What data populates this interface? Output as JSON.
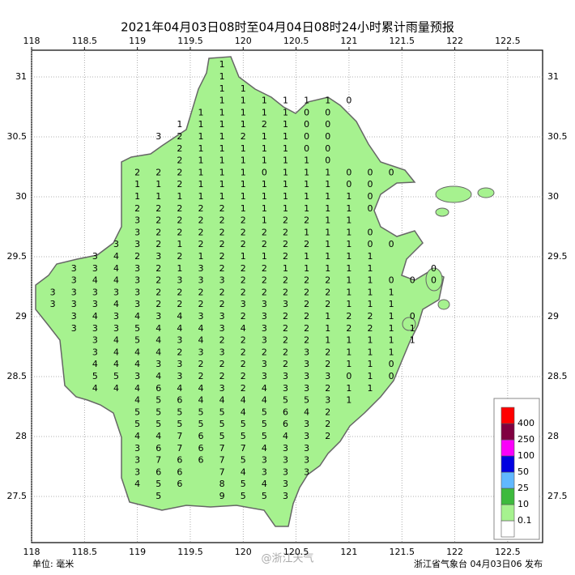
{
  "map": {
    "title": "2021年04月03日08时至04月04日08时24小时累计雨量预报",
    "unit": "单位: 毫米",
    "issuer": "浙江省气象台 04月03日06 发布",
    "watermark": "@浙江天气",
    "xlim": [
      118,
      122.83
    ],
    "ylim": [
      27.115,
      31.223
    ],
    "xticks": [
      118,
      118.5,
      119,
      119.5,
      120,
      120.5,
      121,
      121.5,
      122,
      122.5
    ],
    "yticks": [
      27.5,
      28,
      28.5,
      29,
      29.5,
      30,
      30.5,
      31
    ],
    "grid": true,
    "legend": {
      "colors": [
        "#ffffff",
        "#a6f28f",
        "#3dba3d",
        "#61b8ff",
        "#0000e1",
        "#fa00fa",
        "#800040",
        "#ff0000"
      ],
      "labels": [
        0.1,
        10,
        25,
        50,
        100,
        250,
        400
      ]
    },
    "lons": [
      118.2,
      118.4,
      118.6,
      118.8,
      119.0,
      119.2,
      119.4,
      119.6,
      119.8,
      120.0,
      120.2,
      120.4,
      120.6,
      120.8,
      121.0,
      121.2,
      121.4,
      121.6,
      121.8,
      122.0,
      122.2
    ],
    "lats": [
      31.1,
      31.0,
      30.9,
      30.8,
      30.7,
      30.6,
      30.5,
      30.4,
      30.3,
      30.2,
      30.1,
      30.0,
      29.9,
      29.8,
      29.7,
      29.6,
      29.5,
      29.4,
      29.3,
      29.2,
      29.1,
      29.0,
      28.9,
      28.8,
      28.7,
      28.6,
      28.5,
      28.4,
      28.3,
      28.2,
      28.1,
      28.0,
      27.9,
      27.8,
      27.7,
      27.6,
      27.5
    ],
    "rows": [
      [
        null,
        null,
        null,
        null,
        null,
        null,
        null,
        null,
        1,
        null,
        null,
        null,
        null,
        null,
        null,
        null,
        null,
        null,
        null,
        null,
        null
      ],
      [
        null,
        null,
        null,
        null,
        null,
        null,
        null,
        null,
        1,
        null,
        null,
        null,
        null,
        null,
        null,
        null,
        null,
        null,
        null,
        null,
        null
      ],
      [
        null,
        null,
        null,
        null,
        null,
        null,
        null,
        null,
        1,
        1,
        null,
        null,
        null,
        null,
        null,
        null,
        null,
        null,
        null,
        null,
        null
      ],
      [
        null,
        null,
        null,
        null,
        null,
        null,
        null,
        null,
        1,
        1,
        1,
        1,
        1,
        1,
        0,
        null,
        null,
        null,
        null,
        null,
        null
      ],
      [
        null,
        null,
        null,
        null,
        null,
        null,
        null,
        1,
        1,
        1,
        1,
        1,
        0,
        0,
        null,
        null,
        null,
        null,
        null,
        null,
        null
      ],
      [
        null,
        null,
        null,
        null,
        null,
        null,
        1,
        1,
        1,
        1,
        2,
        1,
        0,
        0,
        null,
        null,
        null,
        null,
        null,
        null,
        null
      ],
      [
        null,
        null,
        null,
        null,
        null,
        3,
        2,
        1,
        1,
        2,
        1,
        1,
        0,
        0,
        null,
        null,
        null,
        null,
        null,
        null,
        null
      ],
      [
        null,
        null,
        null,
        null,
        null,
        null,
        2,
        1,
        1,
        1,
        1,
        1,
        0,
        0,
        null,
        null,
        null,
        null,
        null,
        null,
        null
      ],
      [
        null,
        null,
        null,
        null,
        null,
        null,
        2,
        1,
        1,
        1,
        1,
        1,
        1,
        0,
        null,
        null,
        null,
        null,
        null,
        null,
        null
      ],
      [
        null,
        null,
        null,
        null,
        2,
        2,
        2,
        1,
        1,
        1,
        0,
        1,
        1,
        1,
        0,
        0,
        0,
        null,
        null,
        null,
        null
      ],
      [
        null,
        null,
        null,
        null,
        1,
        1,
        2,
        1,
        1,
        1,
        1,
        1,
        1,
        1,
        0,
        0,
        null,
        null,
        null,
        null,
        null
      ],
      [
        null,
        null,
        null,
        null,
        1,
        1,
        1,
        1,
        1,
        1,
        1,
        1,
        1,
        1,
        1,
        0,
        null,
        null,
        null,
        null,
        null
      ],
      [
        null,
        null,
        null,
        null,
        2,
        2,
        2,
        2,
        2,
        1,
        1,
        1,
        1,
        1,
        1,
        0,
        null,
        null,
        null,
        null,
        null
      ],
      [
        null,
        null,
        null,
        null,
        3,
        2,
        2,
        2,
        2,
        2,
        1,
        2,
        2,
        1,
        1,
        null,
        null,
        null,
        null,
        null,
        null
      ],
      [
        null,
        null,
        null,
        null,
        3,
        2,
        2,
        2,
        2,
        2,
        2,
        2,
        1,
        1,
        1,
        0,
        null,
        null,
        null,
        null,
        null
      ],
      [
        null,
        null,
        null,
        3,
        3,
        2,
        1,
        2,
        2,
        2,
        2,
        2,
        2,
        1,
        1,
        0,
        0,
        null,
        null,
        null,
        null
      ],
      [
        null,
        null,
        3,
        4,
        2,
        3,
        2,
        1,
        2,
        1,
        1,
        2,
        1,
        1,
        1,
        1,
        null,
        null,
        null,
        null,
        null
      ],
      [
        null,
        3,
        3,
        4,
        3,
        2,
        1,
        3,
        2,
        2,
        2,
        1,
        1,
        1,
        1,
        1,
        null,
        null,
        0,
        null,
        null
      ],
      [
        null,
        3,
        4,
        4,
        3,
        2,
        3,
        3,
        3,
        2,
        2,
        2,
        2,
        2,
        1,
        1,
        0,
        0,
        0,
        null,
        null
      ],
      [
        3,
        3,
        3,
        3,
        3,
        2,
        2,
        2,
        2,
        2,
        2,
        2,
        2,
        2,
        1,
        1,
        1,
        null,
        null,
        null,
        null
      ],
      [
        3,
        3,
        3,
        4,
        3,
        2,
        2,
        2,
        2,
        3,
        3,
        3,
        2,
        2,
        1,
        1,
        1,
        null,
        null,
        null,
        null
      ],
      [
        null,
        3,
        4,
        3,
        4,
        3,
        4,
        3,
        3,
        2,
        3,
        2,
        2,
        1,
        2,
        2,
        1,
        0,
        null,
        null,
        null
      ],
      [
        null,
        3,
        3,
        3,
        5,
        4,
        4,
        4,
        3,
        4,
        3,
        2,
        2,
        1,
        2,
        2,
        1,
        1,
        null,
        null,
        null
      ],
      [
        null,
        null,
        3,
        4,
        5,
        4,
        3,
        4,
        2,
        2,
        3,
        2,
        2,
        1,
        1,
        1,
        1,
        1,
        null,
        null,
        null
      ],
      [
        null,
        null,
        3,
        4,
        4,
        4,
        2,
        3,
        3,
        2,
        2,
        2,
        3,
        2,
        1,
        1,
        1,
        null,
        null,
        null,
        null
      ],
      [
        null,
        null,
        4,
        4,
        4,
        3,
        3,
        2,
        2,
        2,
        3,
        2,
        3,
        2,
        1,
        1,
        0,
        null,
        null,
        null,
        null
      ],
      [
        null,
        null,
        5,
        5,
        3,
        4,
        3,
        2,
        2,
        2,
        3,
        3,
        3,
        3,
        0,
        1,
        0,
        null,
        null,
        null,
        null
      ],
      [
        null,
        null,
        4,
        4,
        4,
        6,
        4,
        4,
        3,
        2,
        4,
        3,
        3,
        2,
        1,
        1,
        null,
        null,
        null,
        null,
        null
      ],
      [
        null,
        null,
        null,
        null,
        4,
        5,
        6,
        4,
        4,
        4,
        4,
        5,
        5,
        3,
        1,
        null,
        null,
        null,
        null,
        null,
        null
      ],
      [
        null,
        null,
        null,
        null,
        5,
        5,
        5,
        5,
        5,
        4,
        5,
        6,
        4,
        2,
        null,
        null,
        null,
        null,
        null,
        null,
        null
      ],
      [
        null,
        null,
        null,
        null,
        5,
        5,
        5,
        5,
        5,
        5,
        5,
        6,
        3,
        2,
        null,
        null,
        null,
        null,
        null,
        null,
        null
      ],
      [
        null,
        null,
        null,
        null,
        4,
        4,
        7,
        6,
        5,
        5,
        5,
        4,
        3,
        2,
        null,
        null,
        null,
        null,
        null,
        null,
        null
      ],
      [
        null,
        null,
        null,
        null,
        3,
        6,
        7,
        6,
        7,
        7,
        4,
        3,
        3,
        null,
        null,
        null,
        null,
        null,
        null,
        null,
        null
      ],
      [
        null,
        null,
        null,
        null,
        3,
        7,
        6,
        6,
        7,
        5,
        3,
        3,
        3,
        null,
        null,
        null,
        null,
        null,
        null,
        null,
        null
      ],
      [
        null,
        null,
        null,
        null,
        3,
        6,
        6,
        null,
        7,
        4,
        3,
        3,
        3,
        null,
        null,
        null,
        null,
        null,
        null,
        null,
        null
      ],
      [
        null,
        null,
        null,
        null,
        4,
        5,
        6,
        null,
        8,
        5,
        4,
        3,
        null,
        null,
        null,
        null,
        null,
        null,
        null,
        null,
        null
      ],
      [
        null,
        null,
        null,
        null,
        null,
        5,
        null,
        null,
        9,
        5,
        5,
        3,
        null,
        null,
        null,
        null,
        null,
        null,
        null,
        null,
        null
      ]
    ]
  }
}
